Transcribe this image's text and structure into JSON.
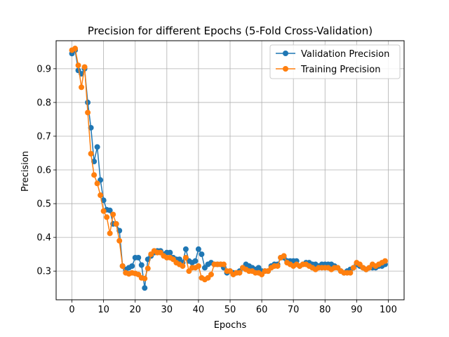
{
  "chart_data": {
    "type": "line",
    "title": "Precision for different Epochs (5-Fold Cross-Validation)",
    "xlabel": "Epochs",
    "ylabel": "Precision",
    "xlim": [
      -5,
      105
    ],
    "ylim": [
      0.215,
      0.983
    ],
    "xticks": [
      0,
      10,
      20,
      30,
      40,
      50,
      60,
      70,
      80,
      90,
      100
    ],
    "yticks": [
      0.3,
      0.4,
      0.5,
      0.6,
      0.7,
      0.8,
      0.9
    ],
    "grid": true,
    "legend_position": "upper-right",
    "series": [
      {
        "name": "Validation Precision",
        "color": "#1f77b4",
        "values": [
          0.945,
          0.955,
          0.895,
          0.885,
          0.9,
          0.8,
          0.725,
          0.625,
          0.668,
          0.57,
          0.51,
          0.482,
          0.48,
          0.44,
          0.44,
          0.42,
          0.315,
          0.305,
          0.31,
          0.315,
          0.34,
          0.34,
          0.318,
          0.25,
          0.335,
          0.345,
          0.355,
          0.36,
          0.36,
          0.35,
          0.355,
          0.355,
          0.34,
          0.335,
          0.335,
          0.325,
          0.365,
          0.33,
          0.325,
          0.33,
          0.365,
          0.35,
          0.31,
          0.32,
          0.325,
          0.32,
          0.32,
          0.32,
          0.31,
          0.295,
          0.3,
          0.295,
          0.295,
          0.3,
          0.31,
          0.32,
          0.315,
          0.31,
          0.305,
          0.31,
          0.3,
          0.3,
          0.3,
          0.315,
          0.32,
          0.32,
          0.34,
          0.34,
          0.33,
          0.33,
          0.33,
          0.33,
          0.315,
          0.32,
          0.325,
          0.325,
          0.32,
          0.32,
          0.315,
          0.32,
          0.32,
          0.32,
          0.32,
          0.315,
          0.31,
          0.3,
          0.295,
          0.3,
          0.305,
          0.31,
          0.32,
          0.315,
          0.31,
          0.305,
          0.31,
          0.31,
          0.31,
          0.315,
          0.315,
          0.32
        ]
      },
      {
        "name": "Training Precision",
        "color": "#ff7f0e",
        "values": [
          0.955,
          0.96,
          0.91,
          0.845,
          0.905,
          0.77,
          0.648,
          0.585,
          0.56,
          0.525,
          0.478,
          0.46,
          0.412,
          0.468,
          0.44,
          0.39,
          0.315,
          0.295,
          0.292,
          0.295,
          0.293,
          0.29,
          0.28,
          0.278,
          0.308,
          0.35,
          0.36,
          0.355,
          0.355,
          0.345,
          0.34,
          0.34,
          0.335,
          0.325,
          0.32,
          0.315,
          0.34,
          0.3,
          0.31,
          0.31,
          0.315,
          0.28,
          0.275,
          0.28,
          0.29,
          0.32,
          0.32,
          0.32,
          0.32,
          0.3,
          0.3,
          0.29,
          0.295,
          0.295,
          0.31,
          0.305,
          0.3,
          0.3,
          0.295,
          0.295,
          0.29,
          0.3,
          0.3,
          0.31,
          0.315,
          0.315,
          0.34,
          0.345,
          0.325,
          0.32,
          0.315,
          0.32,
          0.315,
          0.32,
          0.32,
          0.315,
          0.31,
          0.305,
          0.31,
          0.31,
          0.31,
          0.31,
          0.305,
          0.31,
          0.31,
          0.3,
          0.295,
          0.295,
          0.295,
          0.31,
          0.325,
          0.32,
          0.31,
          0.305,
          0.31,
          0.32,
          0.315,
          0.32,
          0.325,
          0.33
        ]
      }
    ]
  }
}
